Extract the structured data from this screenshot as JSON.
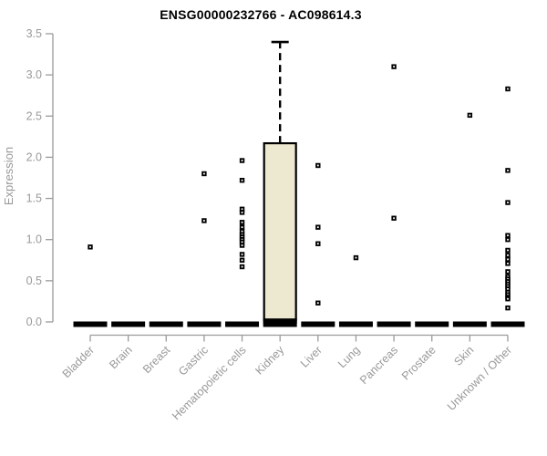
{
  "chart_data": {
    "type": "boxplot",
    "title": "ENSG00000232766 - AC098614.3",
    "ylabel": "Expression",
    "ylim": [
      0.0,
      3.5
    ],
    "yticks": [
      "0.0",
      "0.5",
      "1.0",
      "1.5",
      "2.0",
      "2.5",
      "3.0",
      "3.5"
    ],
    "grid": false,
    "categories": [
      "Bladder",
      "Brain",
      "Breast",
      "Gastric",
      "Hematopoietic cells",
      "Kidney",
      "Liver",
      "Lung",
      "Pancreas",
      "Prostate",
      "Skin",
      "Unknown / Other"
    ],
    "series": [
      {
        "category": "Bladder",
        "zero_bar": true,
        "points": [
          0.91
        ]
      },
      {
        "category": "Brain",
        "zero_bar": true,
        "points": []
      },
      {
        "category": "Breast",
        "zero_bar": true,
        "points": []
      },
      {
        "category": "Gastric",
        "zero_bar": true,
        "points": [
          1.8,
          1.23
        ]
      },
      {
        "category": "Hematopoietic cells",
        "zero_bar": true,
        "points": [
          1.96,
          1.72,
          1.37,
          1.33,
          1.21,
          1.15,
          1.1,
          1.06,
          1.03,
          1.0,
          0.97,
          0.93,
          0.82,
          0.75,
          0.67
        ]
      },
      {
        "category": "Kidney",
        "zero_bar": true,
        "box": {
          "lower": 0.02,
          "upper": 2.17,
          "median": 0.02,
          "whisker_high": 3.4
        },
        "points": []
      },
      {
        "category": "Liver",
        "zero_bar": true,
        "points": [
          1.9,
          1.15,
          0.95,
          0.23
        ]
      },
      {
        "category": "Lung",
        "zero_bar": true,
        "points": [
          0.78
        ]
      },
      {
        "category": "Pancreas",
        "zero_bar": true,
        "points": [
          3.1,
          1.26
        ]
      },
      {
        "category": "Prostate",
        "zero_bar": true,
        "points": []
      },
      {
        "category": "Skin",
        "zero_bar": true,
        "points": [
          2.51
        ]
      },
      {
        "category": "Unknown / Other",
        "zero_bar": true,
        "points": [
          2.83,
          1.84,
          1.45,
          1.05,
          1.0,
          0.87,
          0.81,
          0.76,
          0.71,
          0.61,
          0.55,
          0.52,
          0.49,
          0.46,
          0.43,
          0.4,
          0.36,
          0.33,
          0.3,
          0.28,
          0.17
        ]
      }
    ],
    "colors": {
      "background": "#ffffff",
      "title": "#000000",
      "axis": "#9a9a9a",
      "tick_label": "#999999",
      "box_fill": "#ede8d0",
      "box_border": "#000000",
      "point": "#000000"
    }
  }
}
